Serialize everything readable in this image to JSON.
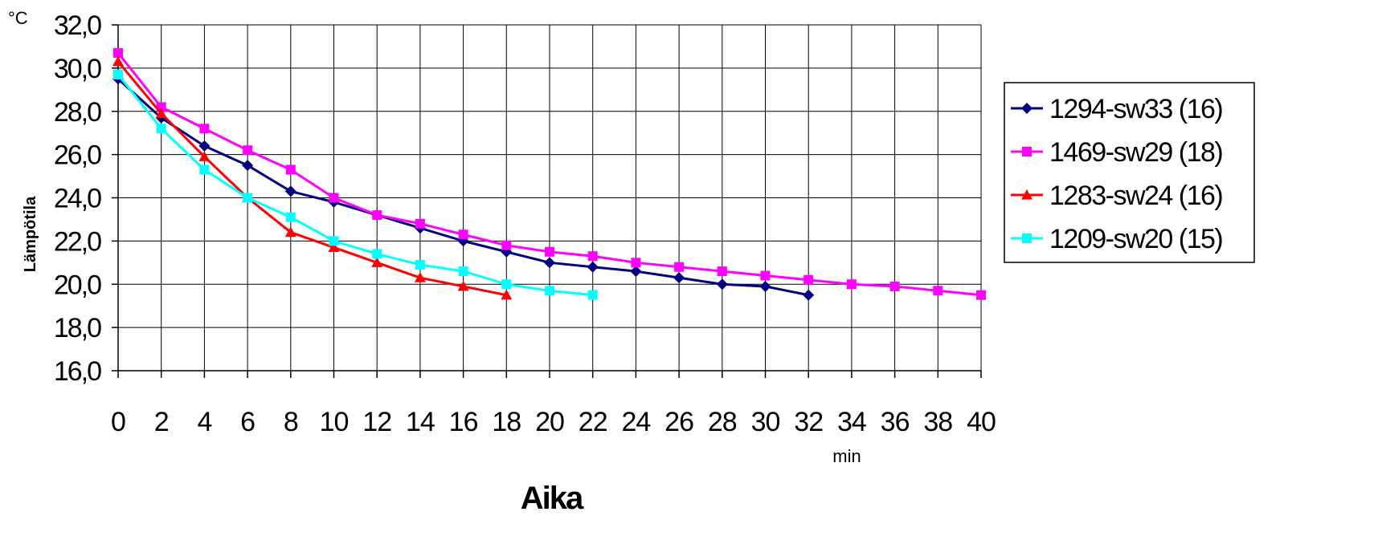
{
  "chart_data": {
    "type": "line",
    "title": "",
    "xlabel": "Aika",
    "ylabel": "Lämpötila",
    "y_unit": "°C",
    "x_unit": "min",
    "xlim": [
      0,
      40
    ],
    "ylim": [
      16,
      32
    ],
    "x_ticks": [
      0,
      2,
      4,
      6,
      8,
      10,
      12,
      14,
      16,
      18,
      20,
      22,
      24,
      26,
      28,
      30,
      32,
      34,
      36,
      38,
      40
    ],
    "y_ticks": [
      "16,0",
      "18,0",
      "20,0",
      "22,0",
      "24,0",
      "26,0",
      "28,0",
      "30,0",
      "32,0"
    ],
    "grid": true,
    "legend_position": "right",
    "series": [
      {
        "name": "1294-sw33 (16)",
        "color": "#000080",
        "marker": "diamond",
        "x": [
          0,
          2,
          4,
          6,
          8,
          10,
          12,
          14,
          16,
          18,
          20,
          22,
          24,
          26,
          28,
          30,
          32
        ],
        "values": [
          29.5,
          27.7,
          26.4,
          25.5,
          24.3,
          23.8,
          23.2,
          22.6,
          22.0,
          21.5,
          21.0,
          20.8,
          20.6,
          20.3,
          20.0,
          19.9,
          19.5
        ]
      },
      {
        "name": "1469-sw29 (18)",
        "color": "#FF00FF",
        "marker": "square",
        "x": [
          0,
          2,
          4,
          6,
          8,
          10,
          12,
          14,
          16,
          18,
          20,
          22,
          24,
          26,
          28,
          30,
          32,
          34,
          36,
          38,
          40
        ],
        "values": [
          30.7,
          28.2,
          27.2,
          26.2,
          25.3,
          24.0,
          23.2,
          22.8,
          22.3,
          21.8,
          21.5,
          21.3,
          21.0,
          20.8,
          20.6,
          20.4,
          20.2,
          20.0,
          19.9,
          19.7,
          19.5
        ]
      },
      {
        "name": "1283-sw24 (16)",
        "color": "#FF0000",
        "marker": "triangle",
        "x": [
          0,
          2,
          4,
          6,
          8,
          10,
          12,
          14,
          16,
          18
        ],
        "values": [
          30.3,
          27.9,
          25.9,
          24.0,
          22.4,
          21.7,
          21.0,
          20.3,
          19.9,
          19.5
        ]
      },
      {
        "name": "1209-sw20 (15)",
        "color": "#00FFFF",
        "marker": "square",
        "x": [
          0,
          2,
          4,
          6,
          8,
          10,
          12,
          14,
          16,
          18,
          20,
          22
        ],
        "values": [
          29.7,
          27.2,
          25.3,
          24.0,
          23.1,
          22.0,
          21.4,
          20.9,
          20.6,
          20.0,
          19.7,
          19.5
        ]
      }
    ]
  }
}
